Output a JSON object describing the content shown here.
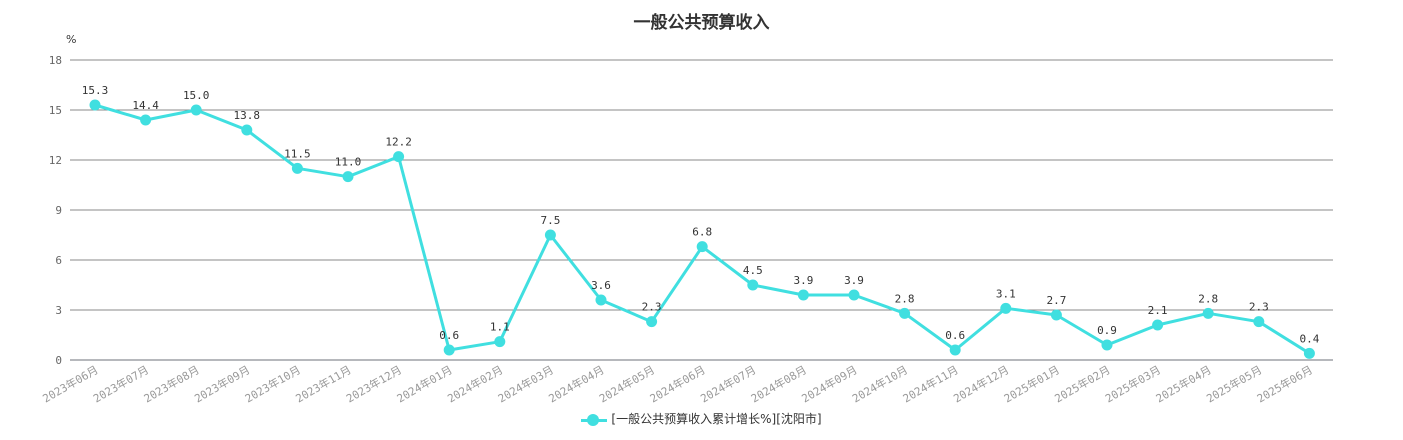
{
  "chart_data": {
    "type": "line",
    "title": "一般公共预算收入",
    "y_unit": "%",
    "ylim": [
      0,
      18
    ],
    "yticks": [
      0,
      3,
      6,
      9,
      12,
      15,
      18
    ],
    "grid": true,
    "legend_position": "bottom",
    "categories": [
      "2023年06月",
      "2023年07月",
      "2023年08月",
      "2023年09月",
      "2023年10月",
      "2023年11月",
      "2023年12月",
      "2024年01月",
      "2024年02月",
      "2024年03月",
      "2024年04月",
      "2024年05月",
      "2024年06月",
      "2024年07月",
      "2024年08月",
      "2024年09月",
      "2024年10月",
      "2024年11月",
      "2024年12月",
      "2025年01月",
      "2025年02月",
      "2025年03月",
      "2025年04月",
      "2025年05月",
      "2025年06月"
    ],
    "series": [
      {
        "name": "[一般公共预算收入累计增长%][沈阳市]",
        "color": "#40dfe0",
        "values": [
          15.3,
          14.4,
          15.0,
          13.8,
          11.5,
          11.0,
          12.2,
          0.6,
          1.1,
          7.5,
          3.6,
          2.3,
          6.8,
          4.5,
          3.9,
          3.9,
          2.8,
          0.6,
          3.1,
          2.7,
          0.9,
          2.1,
          2.8,
          2.3,
          0.4
        ],
        "labels": [
          "15.3",
          "14.4",
          "15.0",
          "13.8",
          "11.5",
          "11.0",
          "12.2",
          "0.6",
          "1.1",
          "7.5",
          "3.6",
          "2.3",
          "6.8",
          "4.5",
          "3.9",
          "3.9",
          "2.8",
          "0.6",
          "3.1",
          "2.7",
          "0.9",
          "2.1",
          "2.8",
          "2.3",
          "0.4"
        ]
      }
    ]
  }
}
